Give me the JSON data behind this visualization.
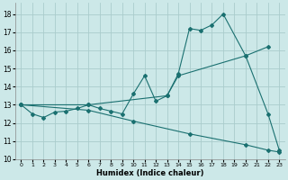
{
  "xlabel": "Humidex (Indice chaleur)",
  "bg_color": "#cce8e8",
  "grid_color": "#aacccc",
  "line_color": "#1a7070",
  "xlim": [
    -0.5,
    23.5
  ],
  "ylim": [
    10,
    18.6
  ],
  "xticks": [
    0,
    1,
    2,
    3,
    4,
    5,
    6,
    7,
    8,
    9,
    10,
    11,
    12,
    13,
    14,
    15,
    16,
    17,
    18,
    19,
    20,
    21,
    22,
    23
  ],
  "yticks": [
    10,
    11,
    12,
    13,
    14,
    15,
    16,
    17,
    18
  ],
  "curve1_x": [
    0,
    1,
    2,
    3,
    4,
    5,
    6,
    7,
    8,
    9,
    10,
    11,
    12,
    13,
    14,
    15,
    16,
    17,
    18,
    20,
    22,
    23
  ],
  "curve1_y": [
    13.0,
    12.5,
    12.3,
    12.6,
    12.65,
    12.8,
    13.0,
    12.8,
    12.65,
    12.5,
    13.6,
    14.6,
    13.2,
    13.5,
    14.7,
    17.2,
    17.1,
    17.4,
    18.0,
    15.7,
    12.5,
    10.5
  ],
  "curve2_x": [
    0,
    6,
    13,
    14,
    20,
    22
  ],
  "curve2_y": [
    13.0,
    13.0,
    13.5,
    14.6,
    15.7,
    16.2
  ],
  "curve3_x": [
    0,
    6,
    10,
    15,
    20,
    22,
    23
  ],
  "curve3_y": [
    13.0,
    12.7,
    12.1,
    11.4,
    10.8,
    10.5,
    10.4
  ]
}
